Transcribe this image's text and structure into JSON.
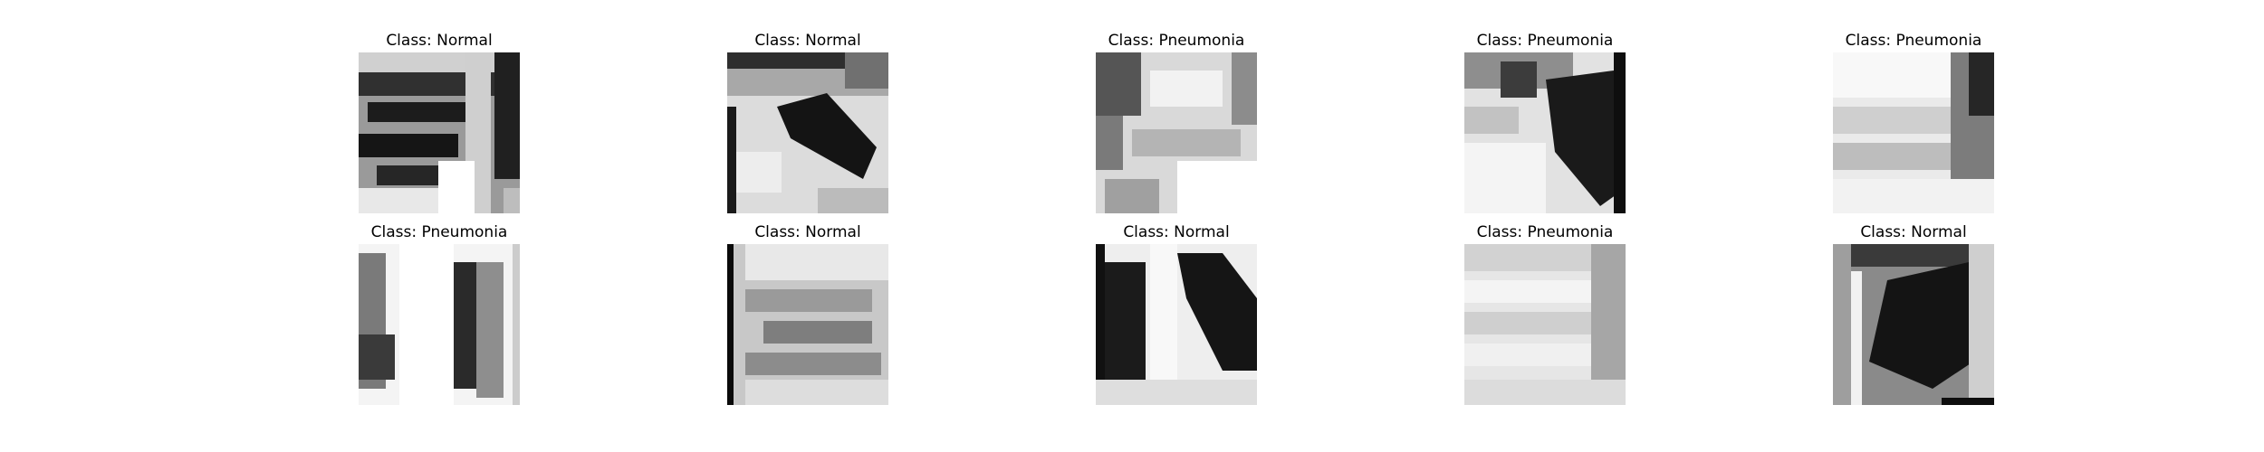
{
  "figure": {
    "title_prefix": "Class: ",
    "samples": [
      {
        "title": "Class: Normal",
        "label": "Normal",
        "pattern": "normal-dark-ribs"
      },
      {
        "title": "Class: Normal",
        "label": "Normal",
        "pattern": "normal-dark-lobe"
      },
      {
        "title": "Class: Pneumonia",
        "label": "Pneumonia",
        "pattern": "pneumonia-light"
      },
      {
        "title": "Class: Pneumonia",
        "label": "Pneumonia",
        "pattern": "pneumonia-right-dark"
      },
      {
        "title": "Class: Pneumonia",
        "label": "Pneumonia",
        "pattern": "pneumonia-light-edge"
      },
      {
        "title": "Class: Pneumonia",
        "label": "Pneumonia",
        "pattern": "pneumonia-two-shadows"
      },
      {
        "title": "Class: Normal",
        "label": "Normal",
        "pattern": "normal-grey-texture"
      },
      {
        "title": "Class: Normal",
        "label": "Normal",
        "pattern": "normal-two-lungs"
      },
      {
        "title": "Class: Pneumonia",
        "label": "Pneumonia",
        "pattern": "pneumonia-faint"
      },
      {
        "title": "Class: Normal",
        "label": "Normal",
        "pattern": "normal-diagonal-lobe"
      }
    ]
  }
}
